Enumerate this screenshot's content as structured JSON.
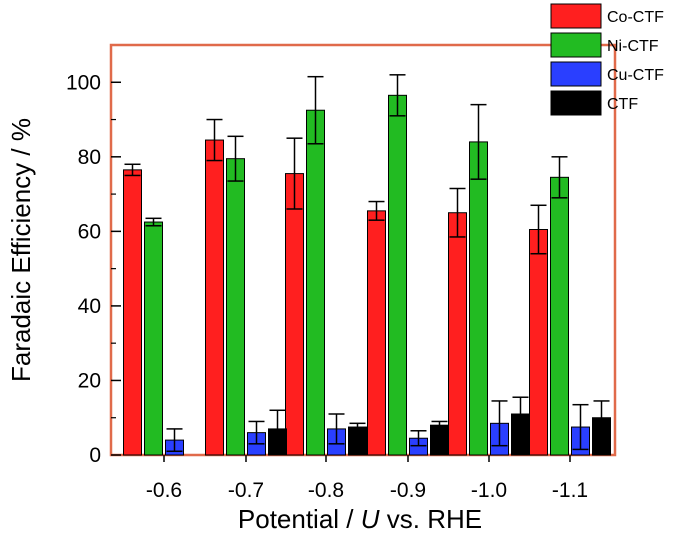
{
  "chart_data": {
    "type": "bar",
    "categories": [
      "-0.6",
      "-0.7",
      "-0.8",
      "-0.9",
      "-1.0",
      "-1.1"
    ],
    "series": [
      {
        "name": "Co-CTF",
        "color": "#ff1f1f",
        "values": [
          76.5,
          84.5,
          75.5,
          65.5,
          65,
          60.5
        ],
        "errors": [
          1.5,
          5.5,
          9.5,
          2.5,
          6.5,
          6.5
        ]
      },
      {
        "name": "Ni-CTF",
        "color": "#22bb22",
        "values": [
          62.5,
          79.5,
          92.5,
          96.5,
          84,
          74.5
        ],
        "errors": [
          1,
          6,
          9,
          5.5,
          10,
          5.5
        ]
      },
      {
        "name": "Cu-CTF",
        "color": "#2a3fff",
        "values": [
          4,
          6,
          7,
          4.5,
          8.5,
          7.5
        ],
        "errors": [
          3,
          3,
          4,
          2,
          6,
          6
        ]
      },
      {
        "name": "CTF",
        "color": "#000000",
        "values": [
          null,
          7,
          7.5,
          8,
          11,
          10
        ],
        "errors": [
          null,
          5,
          1,
          1,
          4.5,
          4.5
        ]
      }
    ],
    "yticks": [
      0,
      20,
      40,
      60,
      80,
      100
    ],
    "ylim": [
      0,
      110
    ],
    "xlabel_parts": [
      "Potential / ",
      "U",
      " vs. RHE"
    ],
    "ylabel": "Faradaic Efficiency / %",
    "legend_position": "top-right",
    "frame_color": "#e06a4a"
  }
}
